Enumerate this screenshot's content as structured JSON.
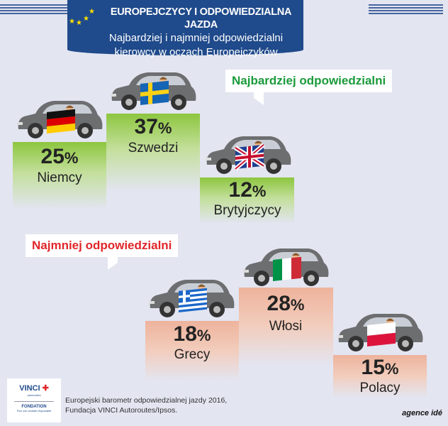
{
  "header": {
    "title": "EUROPEJCZYCY I ODPOWIEDZIALNA JAZDA",
    "subtitle_line1": "Najbardziej i najmniej odpowiedzialni",
    "subtitle_line2": "kierowcy w oczach Europejczyków"
  },
  "most": {
    "label": "Najbardziej odpowiedzialni",
    "color": "#1a9a3a",
    "items": [
      {
        "value": "25",
        "unit": "%",
        "name": "Niemcy",
        "flag": "germany"
      },
      {
        "value": "37",
        "unit": "%",
        "name": "Szwedzi",
        "flag": "sweden"
      },
      {
        "value": "12",
        "unit": "%",
        "name": "Brytyjczycy",
        "flag": "uk"
      }
    ]
  },
  "least": {
    "label": "Najmniej odpowiedzialni",
    "color": "#e0262a",
    "items": [
      {
        "value": "18",
        "unit": "%",
        "name": "Grecy",
        "flag": "greece"
      },
      {
        "value": "28",
        "unit": "%",
        "name": "Włosi",
        "flag": "italy"
      },
      {
        "value": "15",
        "unit": "%",
        "name": "Polacy",
        "flag": "poland"
      }
    ]
  },
  "footer": {
    "source_line1": "Europejski barometr odpowiedzialnej jazdy 2016,",
    "source_line2": "Fundacja VINCI Autoroutes/Ipsos.",
    "logo_brand": "VINCI",
    "logo_sub": "autoroutes",
    "logo_fondation": "FONDATION",
    "logo_tagline": "Pour une conduite responsable",
    "agency": "agence idé"
  }
}
